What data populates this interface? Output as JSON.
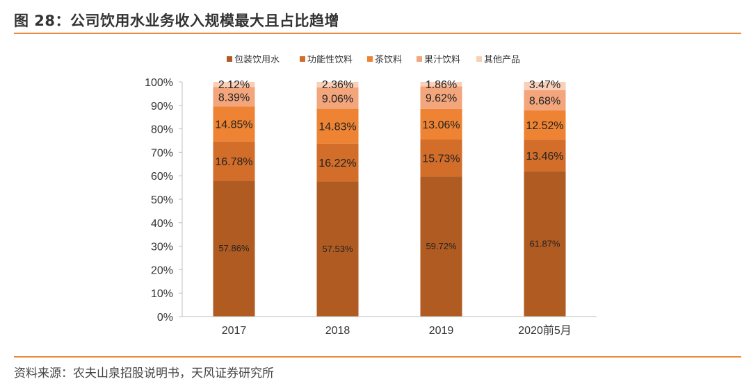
{
  "header": {
    "title": "图 28：公司饮用水业务收入规模最大且占比趋增"
  },
  "footer": {
    "source": "资料来源：农夫山泉招股说明书，天风证券研究所"
  },
  "chart_data": {
    "type": "bar",
    "stacked": true,
    "title": "",
    "xlabel": "",
    "ylabel": "",
    "ylim": [
      0,
      100
    ],
    "y_ticks": [
      "0%",
      "10%",
      "20%",
      "30%",
      "40%",
      "50%",
      "60%",
      "70%",
      "80%",
      "90%",
      "100%"
    ],
    "categories": [
      "2017",
      "2018",
      "2019",
      "2020前5月"
    ],
    "series": [
      {
        "name": "包装饮用水",
        "color": "#b05b22",
        "values": [
          57.86,
          57.53,
          59.72,
          61.87
        ],
        "labels": [
          "57.86%",
          "57.53%",
          "59.72%",
          "61.87%"
        ]
      },
      {
        "name": "功能性饮料",
        "color": "#d26d2a",
        "values": [
          16.78,
          16.22,
          15.73,
          13.46
        ],
        "labels": [
          "16.78%",
          "16.22%",
          "15.73%",
          "13.46%"
        ]
      },
      {
        "name": "茶饮料",
        "color": "#ee8433",
        "values": [
          14.85,
          14.83,
          13.06,
          12.52
        ],
        "labels": [
          "14.85%",
          "14.83%",
          "13.06%",
          "12.52%"
        ]
      },
      {
        "name": "果汁饮料",
        "color": "#f3a57c",
        "values": [
          8.39,
          9.06,
          9.62,
          8.68
        ],
        "labels": [
          "8.39%",
          "9.06%",
          "9.62%",
          "8.68%"
        ]
      },
      {
        "name": "其他产品",
        "color": "#f9cfb8",
        "values": [
          2.12,
          2.36,
          1.86,
          3.47
        ],
        "labels": [
          "2.12%",
          "2.36%",
          "1.86%",
          "3.47%"
        ]
      }
    ],
    "legend_position": "top"
  }
}
